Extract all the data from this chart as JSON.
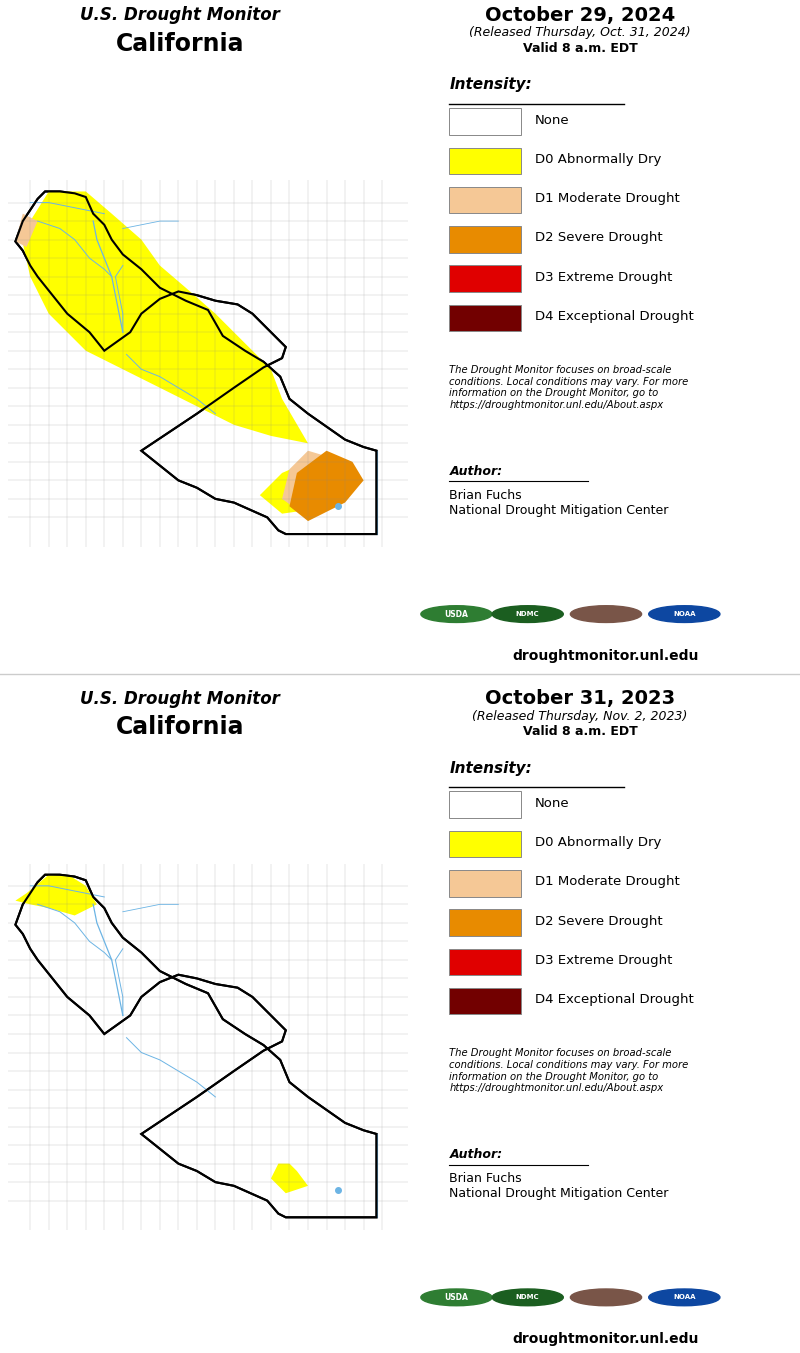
{
  "title_monitor": "U.S. Drought Monitor",
  "title_state": "California",
  "panel1_date": "October 29, 2024",
  "panel1_released": "(Released Thursday, Oct. 31, 2024)",
  "panel1_valid": "Valid 8 a.m. EDT",
  "panel2_date": "October 31, 2023",
  "panel2_released": "(Released Thursday, Nov. 2, 2023)",
  "panel2_valid": "Valid 8 a.m. EDT",
  "legend_title": "Intensity:",
  "legend_items": [
    {
      "color": "#FFFFFF",
      "label": "None",
      "edge": "#888888"
    },
    {
      "color": "#FFFF00",
      "label": "D0 Abnormally Dry",
      "edge": "#888888"
    },
    {
      "color": "#F5C896",
      "label": "D1 Moderate Drought",
      "edge": "#888888"
    },
    {
      "color": "#E88B00",
      "label": "D2 Severe Drought",
      "edge": "#888888"
    },
    {
      "color": "#E00000",
      "label": "D3 Extreme Drought",
      "edge": "#888888"
    },
    {
      "color": "#720000",
      "label": "D4 Exceptional Drought",
      "edge": "#888888"
    }
  ],
  "disclaimer": "The Drought Monitor focuses on broad-scale\nconditions. Local conditions may vary. For more\ninformation on the Drought Monitor, go to\nhttps://droughtmonitor.unl.edu/About.aspx",
  "author_label": "Author:",
  "author_name": "Brian Fuchs\nNational Drought Mitigation Center",
  "website": "droughtmonitor.unl.edu",
  "bg_color": "#FFFFFF",
  "ca_outline_color": "#000000",
  "river_color": "#6CB4E4",
  "county_line_color": "#888888",
  "ca_lon": [
    -124.4,
    -124.2,
    -124.0,
    -123.8,
    -123.6,
    -123.2,
    -122.8,
    -122.5,
    -122.3,
    -122.0,
    -121.8,
    -121.5,
    -121.0,
    -120.5,
    -119.8,
    -119.2,
    -118.8,
    -118.2,
    -117.7,
    -117.25,
    -117.0,
    -116.5,
    -115.5,
    -115.0,
    -114.65,
    -114.65,
    -117.1,
    -117.3,
    -117.6,
    -118.5,
    -119.0,
    -119.5,
    -120.0,
    -120.5,
    -121.0,
    -119.5,
    -118.5,
    -117.7,
    -117.2,
    -117.1,
    -117.5,
    -118.0,
    -118.4,
    -119.0,
    -119.5,
    -120.0,
    -120.5,
    -121.0,
    -121.3,
    -122.0,
    -122.4,
    -123.0,
    -123.8,
    -124.0,
    -124.2,
    -124.4
  ],
  "ca_lat": [
    40.45,
    41.0,
    41.3,
    41.6,
    41.8,
    41.8,
    41.75,
    41.65,
    41.2,
    40.9,
    40.5,
    40.1,
    39.7,
    39.2,
    38.85,
    38.6,
    37.9,
    37.5,
    37.2,
    36.8,
    36.2,
    35.8,
    35.1,
    34.9,
    34.8,
    32.55,
    32.55,
    32.65,
    33.0,
    33.4,
    33.5,
    33.8,
    34.0,
    34.4,
    34.8,
    35.8,
    36.5,
    37.05,
    37.3,
    37.6,
    38.0,
    38.5,
    38.75,
    38.85,
    39.0,
    39.1,
    38.9,
    38.5,
    38.0,
    37.5,
    38.0,
    38.5,
    39.5,
    39.8,
    40.2,
    40.45
  ],
  "d0_2024_lon": [
    -124.2,
    -124.0,
    -123.5,
    -122.5,
    -121.8,
    -121.0,
    -120.5,
    -119.8,
    -119.0,
    -118.0,
    -117.5,
    -117.2,
    -116.5,
    -117.5,
    -118.5,
    -119.5,
    -120.5,
    -121.5,
    -122.5,
    -123.5,
    -124.0,
    -124.2
  ],
  "d0_2024_lat": [
    40.4,
    41.0,
    41.8,
    41.8,
    41.2,
    40.5,
    39.8,
    39.2,
    38.5,
    37.5,
    37.0,
    36.2,
    35.0,
    35.2,
    35.5,
    36.0,
    36.5,
    37.0,
    37.5,
    38.5,
    39.5,
    40.4
  ],
  "d0_se_2024_lon": [
    -117.8,
    -117.2,
    -116.5,
    -115.5,
    -115.8,
    -116.5,
    -117.2,
    -117.8
  ],
  "d0_se_2024_lat": [
    33.6,
    33.1,
    33.2,
    33.8,
    34.3,
    34.5,
    34.2,
    33.6
  ],
  "d1_se_2024_lon": [
    -117.2,
    -116.5,
    -115.5,
    -115.0,
    -115.5,
    -116.5,
    -117.0,
    -117.2
  ],
  "d1_se_2024_lat": [
    33.5,
    33.0,
    33.5,
    34.0,
    34.5,
    34.8,
    34.3,
    33.5
  ],
  "d2_se_2024_lon": [
    -117.0,
    -116.5,
    -115.5,
    -115.0,
    -115.3,
    -116.0,
    -116.8,
    -117.0
  ],
  "d2_se_2024_lat": [
    33.3,
    32.9,
    33.4,
    34.0,
    34.5,
    34.8,
    34.2,
    33.3
  ],
  "nw_d1_2024_lon": [
    -124.4,
    -124.1,
    -123.8,
    -124.2,
    -124.4
  ],
  "nw_d1_2024_lat": [
    40.45,
    40.3,
    41.0,
    41.2,
    40.45
  ],
  "d0_nw_2023_lon": [
    -124.4,
    -124.1,
    -123.5,
    -122.9,
    -122.5,
    -122.2,
    -122.8,
    -123.5,
    -124.0,
    -124.4
  ],
  "d0_nw_2023_lat": [
    41.1,
    41.3,
    41.8,
    41.75,
    41.5,
    41.0,
    40.7,
    40.9,
    41.0,
    41.1
  ],
  "d0_se_2023_lon": [
    -117.5,
    -117.1,
    -116.5,
    -116.8,
    -117.0,
    -117.3,
    -117.5
  ],
  "d0_se_2023_lat": [
    33.6,
    33.2,
    33.4,
    33.8,
    34.0,
    34.0,
    33.6
  ]
}
